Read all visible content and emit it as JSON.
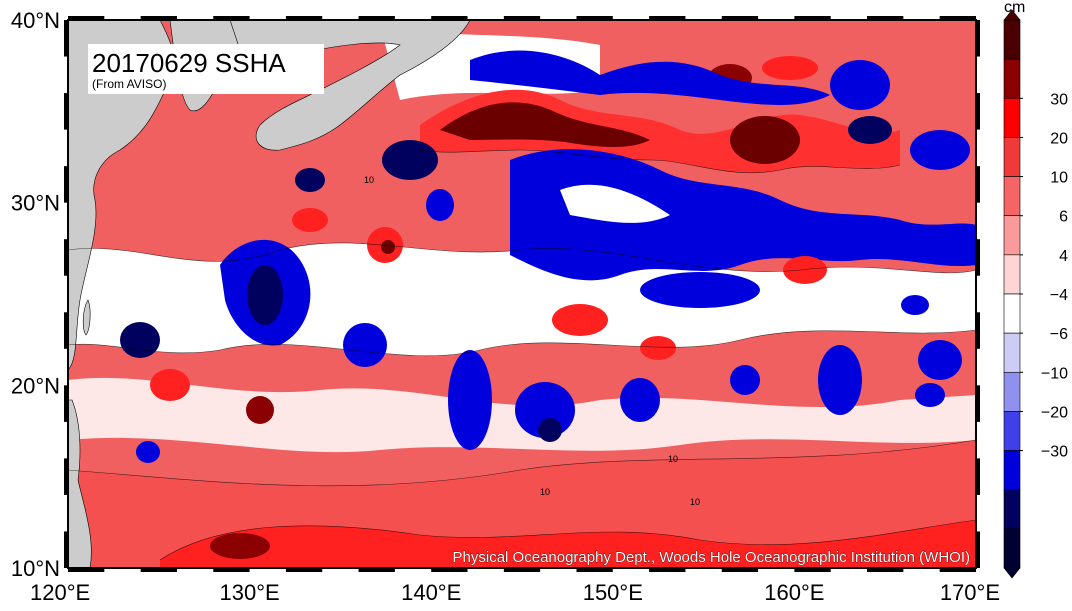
{
  "map": {
    "title": "20170629 SSHA",
    "subtitle": "(From AVISO)",
    "credit": "Physical Oceanography Dept., Woods Hole Oceanographic Institution (WHOI)",
    "lon_range": [
      120,
      170
    ],
    "lat_range": [
      10,
      40
    ],
    "x_ticks": [
      {
        "value": 120,
        "label": "120°E"
      },
      {
        "value": 130,
        "label": "130°E"
      },
      {
        "value": 140,
        "label": "140°E"
      },
      {
        "value": 150,
        "label": "150°E"
      },
      {
        "value": 160,
        "label": "160°E"
      },
      {
        "value": 170,
        "label": "170°E"
      }
    ],
    "y_ticks": [
      {
        "value": 10,
        "label": "10°N"
      },
      {
        "value": 20,
        "label": "20°N"
      },
      {
        "value": 30,
        "label": "30°N"
      },
      {
        "value": 40,
        "label": "40°N"
      }
    ],
    "land_color": "#cccccc",
    "contour_labels": [
      "10",
      "10",
      "10",
      "10"
    ]
  },
  "colorbar": {
    "unit": "cm",
    "labels": [
      "30",
      "20",
      "10",
      "6",
      "4",
      "−4",
      "−6",
      "−10",
      "−20",
      "−30"
    ],
    "colors": [
      "#4a0000",
      "#8b0000",
      "#ff0000",
      "#f03a3a",
      "#f56565",
      "#fa9a9a",
      "#fdd5d5",
      "#ffffff",
      "#ccccf5",
      "#9090ee",
      "#4040ea",
      "#0000dd",
      "#00005e",
      "#000033"
    ]
  }
}
